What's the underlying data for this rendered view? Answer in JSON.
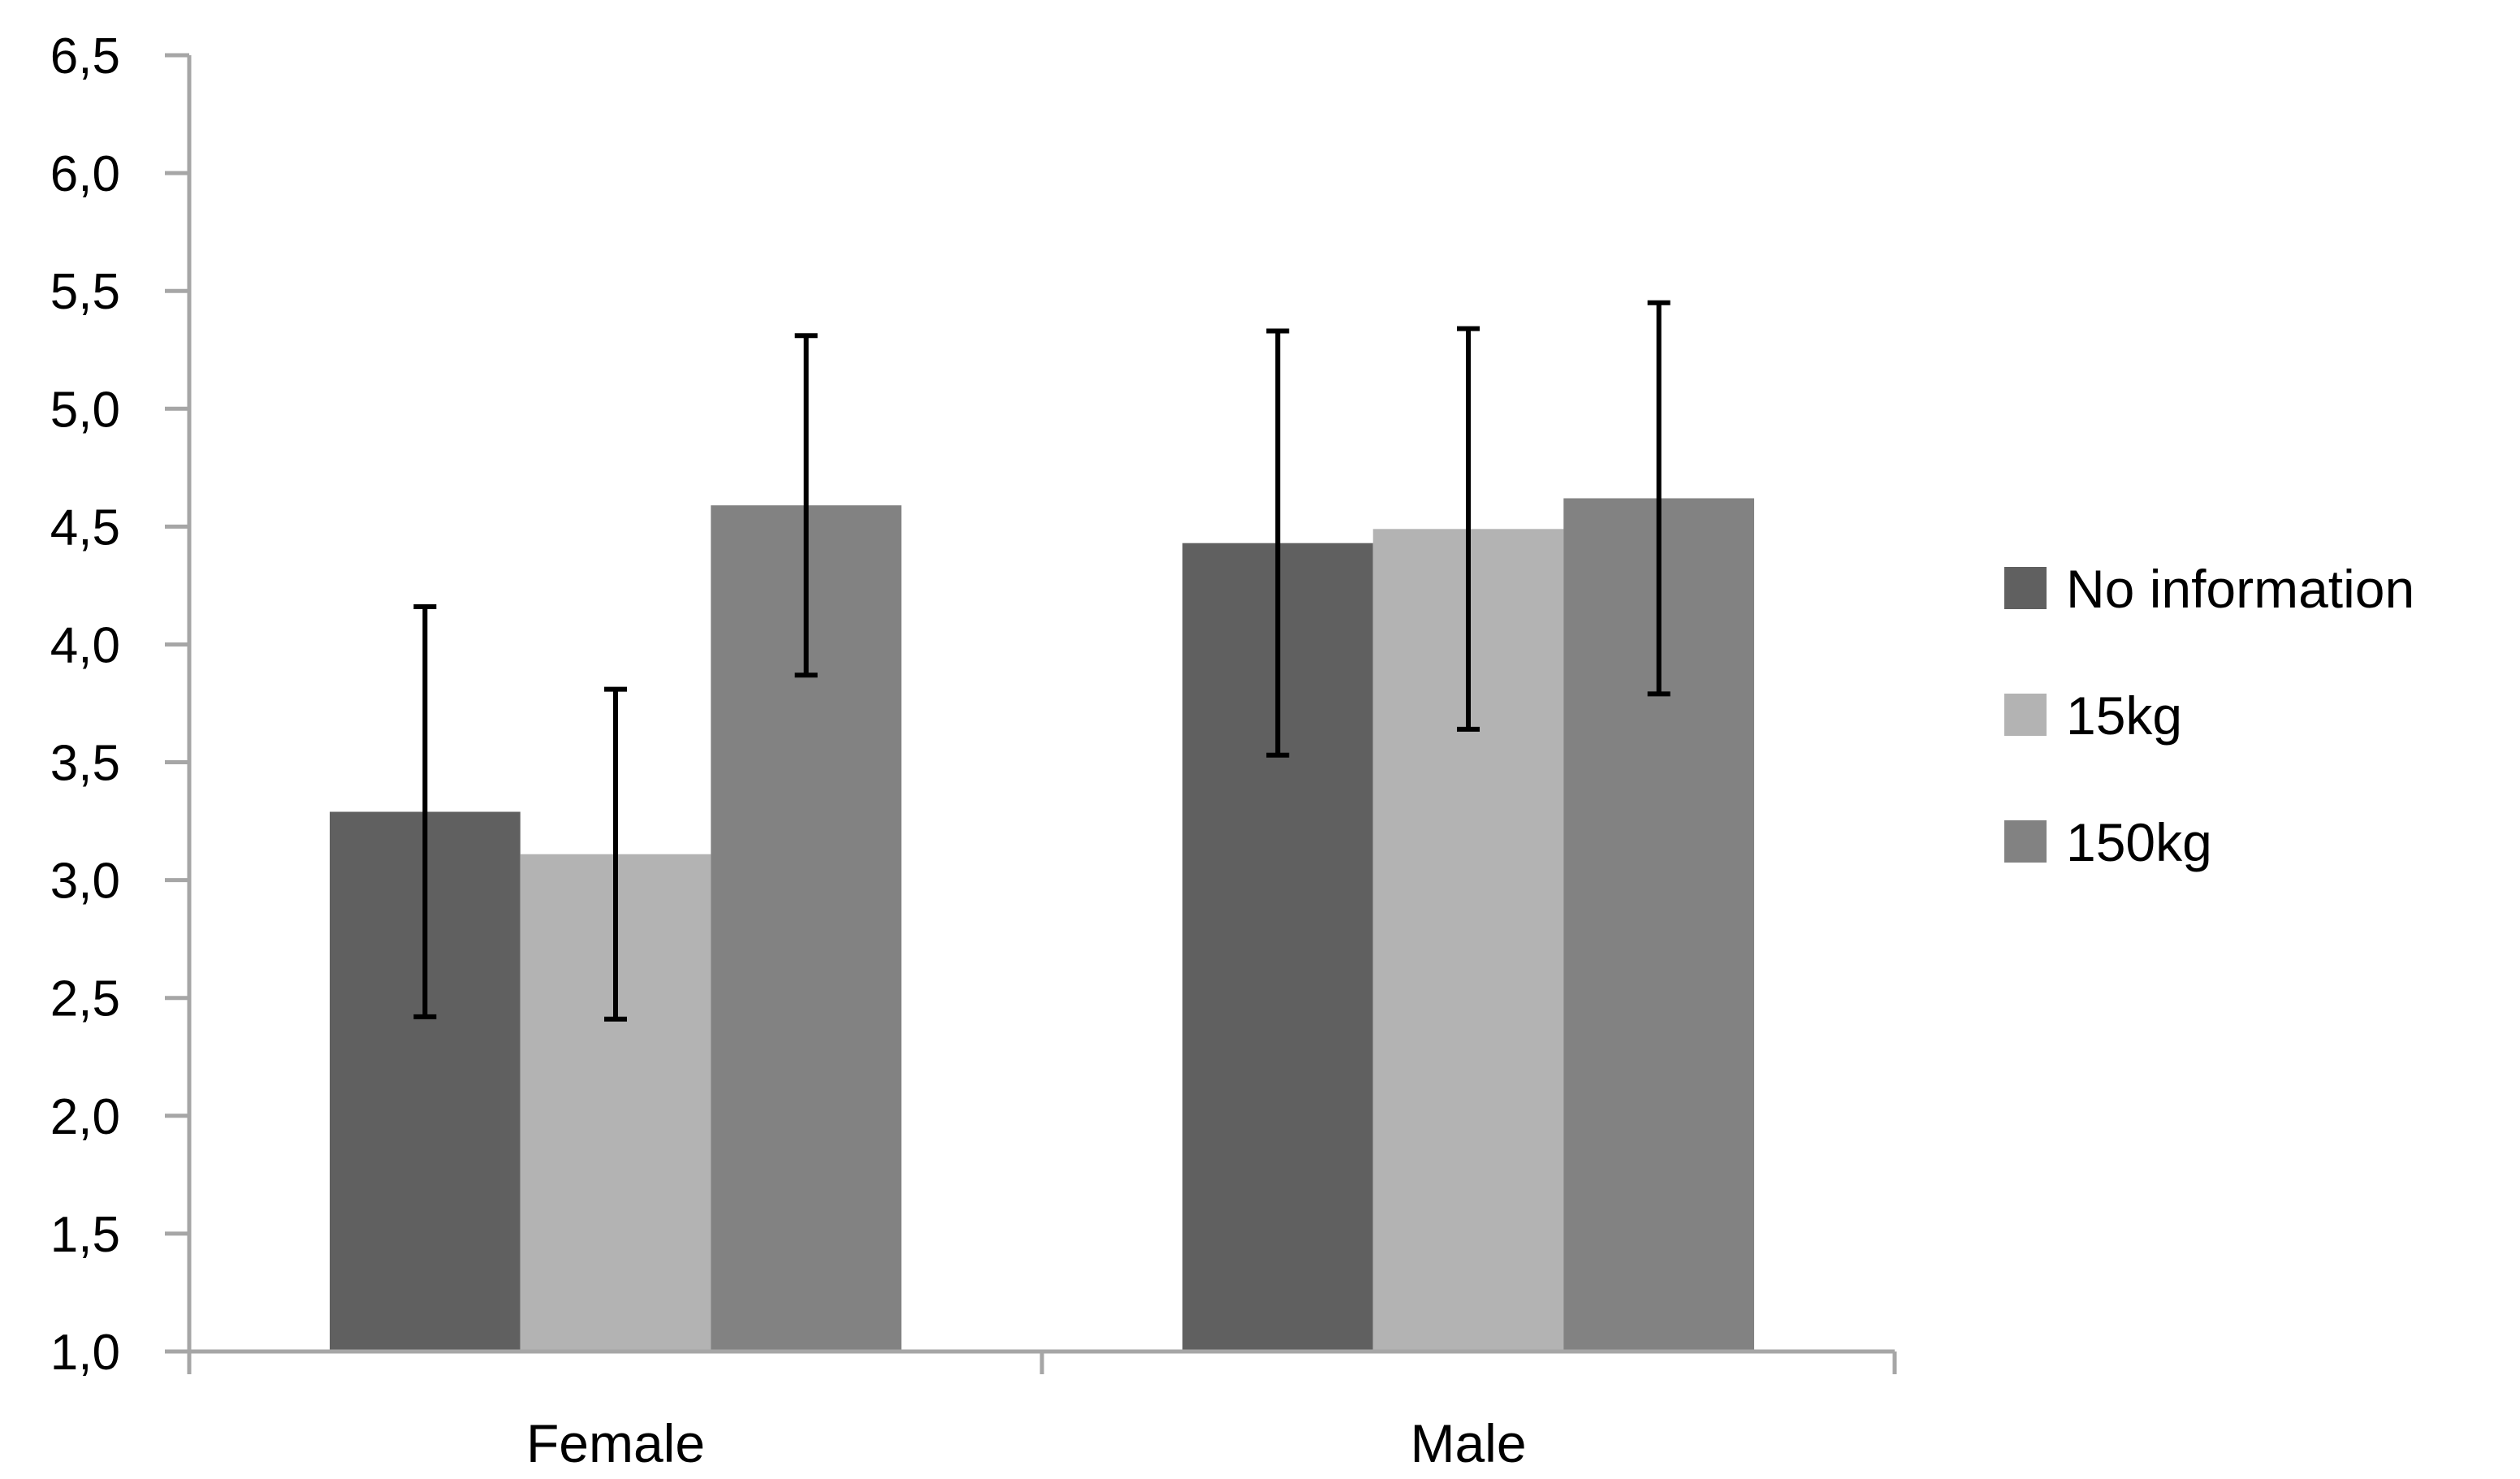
{
  "chart_data": {
    "type": "bar",
    "title": "",
    "xlabel": "",
    "ylabel": "",
    "categories": [
      "Female",
      "Male"
    ],
    "series": [
      {
        "name": "No information",
        "values": [
          3.29,
          4.43
        ],
        "error": [
          0.87,
          0.9
        ]
      },
      {
        "name": "15kg",
        "values": [
          3.11,
          4.49
        ],
        "error": [
          0.7,
          0.85
        ]
      },
      {
        "name": "150kg",
        "values": [
          4.59,
          4.62
        ],
        "error": [
          0.72,
          0.83
        ]
      }
    ],
    "ylim": [
      1.0,
      6.5
    ],
    "yticks": [
      1.0,
      1.5,
      2.0,
      2.5,
      3.0,
      3.5,
      4.0,
      4.5,
      5.0,
      5.5,
      6.0,
      6.5
    ],
    "ytick_labels": [
      "1,0",
      "1,5",
      "2,0",
      "2,5",
      "3,0",
      "3,5",
      "4,0",
      "4,5",
      "5,0",
      "5,5",
      "6,0",
      "6,5"
    ],
    "grid": false,
    "legend_position": "right",
    "colors": [
      "#606060",
      "#b3b3b3",
      "#828282"
    ],
    "axis_color": "#a6a6a6",
    "error_bar_color": "#000000"
  }
}
